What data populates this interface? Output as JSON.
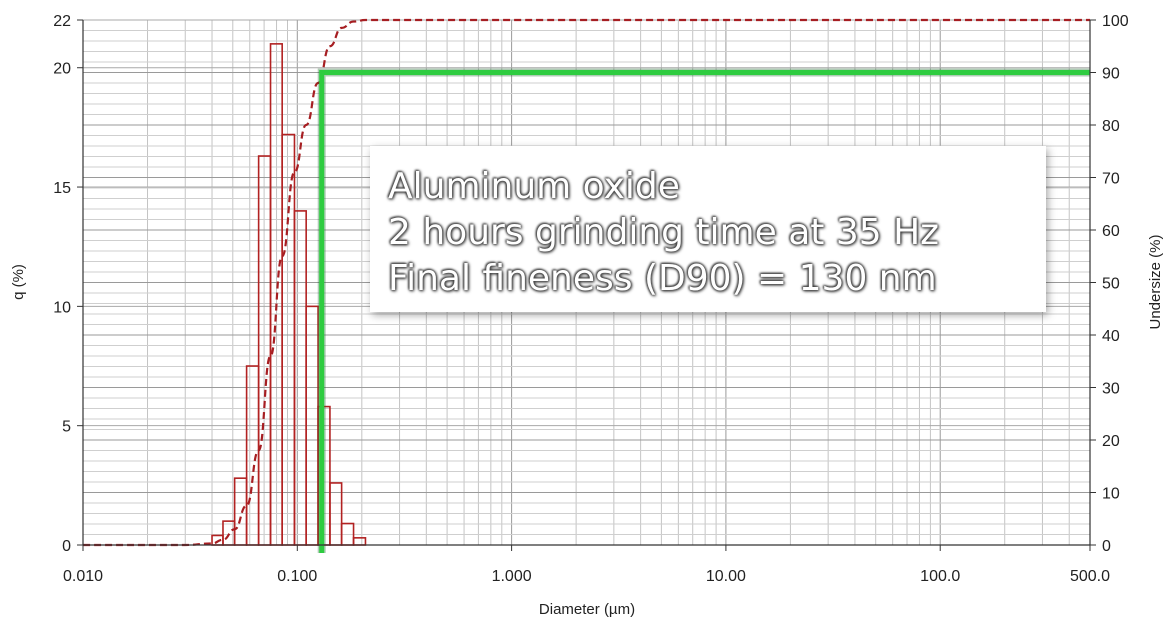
{
  "chart_data": {
    "type": "bar",
    "xlabel": "Diameter (µm)",
    "ylabel_left": "q (%)",
    "ylabel_right": "Undersize (%)",
    "x_scale": "log",
    "xlim": [
      0.01,
      500
    ],
    "x_tick_labels": [
      {
        "value": 0.01,
        "label": "0.010"
      },
      {
        "value": 0.1,
        "label": "0.100"
      },
      {
        "value": 1,
        "label": "1.000"
      },
      {
        "value": 10,
        "label": "10.00"
      },
      {
        "value": 100,
        "label": "100.0"
      },
      {
        "value": 500,
        "label": "500.0"
      }
    ],
    "ylim_left": [
      0,
      22
    ],
    "y_left_ticks": [
      0,
      5,
      10,
      15,
      20,
      22
    ],
    "ylim_right": [
      0,
      100
    ],
    "y_right_ticks": [
      0,
      10,
      20,
      30,
      40,
      50,
      60,
      70,
      80,
      90,
      100
    ],
    "grid": true,
    "series": [
      {
        "kind": "histogram",
        "axis": "left",
        "color": "#b22222",
        "bins": [
          {
            "from": 0.04,
            "to": 0.045,
            "value": 0.4
          },
          {
            "from": 0.045,
            "to": 0.051,
            "value": 1.0
          },
          {
            "from": 0.051,
            "to": 0.058,
            "value": 2.8
          },
          {
            "from": 0.058,
            "to": 0.066,
            "value": 7.5
          },
          {
            "from": 0.066,
            "to": 0.075,
            "value": 16.3
          },
          {
            "from": 0.075,
            "to": 0.085,
            "value": 21.0
          },
          {
            "from": 0.085,
            "to": 0.097,
            "value": 17.2
          },
          {
            "from": 0.097,
            "to": 0.11,
            "value": 14.0
          },
          {
            "from": 0.11,
            "to": 0.125,
            "value": 10.0
          },
          {
            "from": 0.125,
            "to": 0.142,
            "value": 5.8
          },
          {
            "from": 0.142,
            "to": 0.161,
            "value": 2.6
          },
          {
            "from": 0.161,
            "to": 0.183,
            "value": 0.9
          },
          {
            "from": 0.183,
            "to": 0.208,
            "value": 0.3
          }
        ]
      },
      {
        "kind": "cumulative-line",
        "axis": "right",
        "color": "#a61e22",
        "style": "dashed",
        "points": [
          [
            0.01,
            0
          ],
          [
            0.03,
            0
          ],
          [
            0.04,
            0.3
          ],
          [
            0.045,
            1.0
          ],
          [
            0.051,
            3.0
          ],
          [
            0.058,
            7.5
          ],
          [
            0.066,
            18
          ],
          [
            0.075,
            36
          ],
          [
            0.085,
            55
          ],
          [
            0.097,
            71
          ],
          [
            0.11,
            80
          ],
          [
            0.125,
            88
          ],
          [
            0.142,
            95
          ],
          [
            0.161,
            98.5
          ],
          [
            0.183,
            99.7
          ],
          [
            0.208,
            100
          ],
          [
            500,
            100
          ]
        ]
      },
      {
        "kind": "marker-line",
        "axis": "right",
        "color": "#2ecc40",
        "d90_diameter": 0.13,
        "d90_percent": 90
      }
    ],
    "annotation": [
      "Aluminum oxide",
      "2 hours grinding time at 35 Hz",
      "Final fineness (D90) = 130 nm"
    ]
  }
}
